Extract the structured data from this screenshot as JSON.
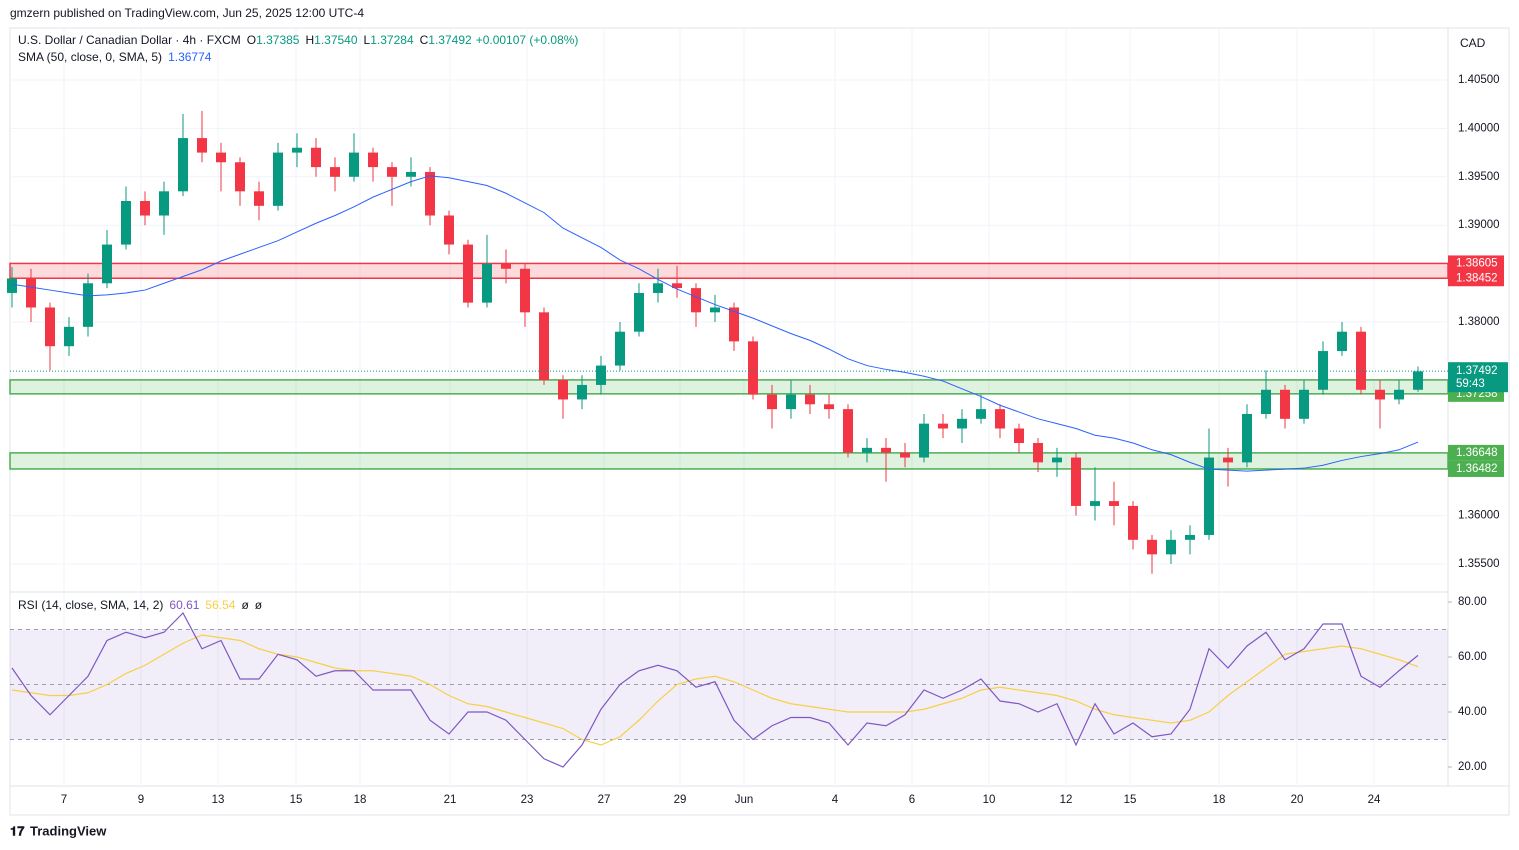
{
  "header": {
    "publisher": "gmzern published on TradingView.com, Jun 25, 2025 12:00 UTC-4",
    "symbol": "U.S. Dollar / Canadian Dollar · 4h · FXCM",
    "ohlc": [
      {
        "k": "O",
        "v": "1.37385"
      },
      {
        "k": "H",
        "v": "1.37540"
      },
      {
        "k": "L",
        "v": "1.37284"
      },
      {
        "k": "C",
        "v": "1.37492"
      }
    ],
    "change": "+0.00107 (+0.08%)",
    "sma_label": "SMA (50, close, 0, SMA, 5)",
    "sma_value": "1.36774",
    "rsi_label": "RSI (14, close, SMA, 14, 2)",
    "rsi_value": "60.61",
    "rsi_ma_value": "56.54",
    "rsi_extra": [
      "ø",
      "ø"
    ],
    "currency": "CAD",
    "footer": "TradingView"
  },
  "chart_data": {
    "type": "candlestick",
    "up_color": "#089981",
    "down_color": "#f23645",
    "ylim": [
      1.35211,
      1.41037
    ],
    "yticks": [
      {
        "value": 1.355,
        "label": "1.35500"
      },
      {
        "value": 1.36,
        "label": "1.36000"
      },
      {
        "value": 1.38,
        "label": "1.38000"
      },
      {
        "value": 1.39,
        "label": "1.39000"
      },
      {
        "value": 1.395,
        "label": "1.39500"
      },
      {
        "value": 1.4,
        "label": "1.40000"
      },
      {
        "value": 1.405,
        "label": "1.40500"
      }
    ],
    "xticks": [
      "7",
      "9",
      "13",
      "15",
      "18",
      "21",
      "23",
      "27",
      "29",
      "Jun",
      "4",
      "6",
      "10",
      "12",
      "15",
      "18",
      "20",
      "24"
    ],
    "open": [
      1.383,
      1.3845,
      1.3815,
      1.3775,
      1.3795,
      1.384,
      1.388,
      1.3925,
      1.391,
      1.3935,
      1.399,
      1.3975,
      1.3965,
      1.3935,
      1.392,
      1.3975,
      1.398,
      1.396,
      1.395,
      1.3975,
      1.396,
      1.395,
      1.3955,
      1.391,
      1.388,
      1.382,
      1.386,
      1.3855,
      1.381,
      1.374,
      1.372,
      1.3735,
      1.3755,
      1.379,
      1.383,
      1.384,
      1.3835,
      1.381,
      1.3815,
      1.378,
      1.3725,
      1.371,
      1.3725,
      1.3715,
      1.371,
      1.3665,
      1.367,
      1.3665,
      1.366,
      1.3695,
      1.369,
      1.37,
      1.371,
      1.369,
      1.3675,
      1.3655,
      1.366,
      1.361,
      1.3615,
      1.361,
      1.3575,
      1.356,
      1.3575,
      1.358,
      1.366,
      1.3655,
      1.3705,
      1.373,
      1.37,
      1.373,
      1.377,
      1.379,
      1.373,
      1.372,
      1.373
    ],
    "high": [
      1.3857,
      1.3855,
      1.382,
      1.3805,
      1.385,
      1.3895,
      1.394,
      1.3935,
      1.3945,
      1.4015,
      1.4018,
      1.3985,
      1.397,
      1.3945,
      1.3985,
      1.3995,
      1.399,
      1.397,
      1.3995,
      1.398,
      1.3965,
      1.397,
      1.396,
      1.3915,
      1.3885,
      1.389,
      1.3875,
      1.386,
      1.3815,
      1.3745,
      1.3745,
      1.3765,
      1.38,
      1.384,
      1.3855,
      1.3858,
      1.384,
      1.3828,
      1.382,
      1.3785,
      1.3735,
      1.374,
      1.3735,
      1.3725,
      1.3715,
      1.368,
      1.368,
      1.3675,
      1.3705,
      1.3705,
      1.371,
      1.3725,
      1.3715,
      1.3695,
      1.368,
      1.367,
      1.3665,
      1.365,
      1.3635,
      1.3615,
      1.358,
      1.3585,
      1.359,
      1.369,
      1.367,
      1.3715,
      1.375,
      1.3735,
      1.374,
      1.378,
      1.38,
      1.3795,
      1.374,
      1.374,
      1.3754
    ],
    "low": [
      1.3815,
      1.38,
      1.375,
      1.3765,
      1.3785,
      1.3835,
      1.3875,
      1.39,
      1.389,
      1.393,
      1.3965,
      1.3935,
      1.392,
      1.3905,
      1.3915,
      1.396,
      1.395,
      1.3935,
      1.3945,
      1.3945,
      1.392,
      1.394,
      1.39,
      1.387,
      1.3815,
      1.3815,
      1.384,
      1.3795,
      1.3735,
      1.37,
      1.371,
      1.3725,
      1.375,
      1.3785,
      1.382,
      1.3825,
      1.3795,
      1.38,
      1.377,
      1.372,
      1.369,
      1.37,
      1.3705,
      1.37,
      1.366,
      1.3655,
      1.3635,
      1.365,
      1.3655,
      1.368,
      1.3675,
      1.3695,
      1.368,
      1.3665,
      1.3645,
      1.364,
      1.36,
      1.3595,
      1.359,
      1.3565,
      1.354,
      1.355,
      1.356,
      1.3575,
      1.363,
      1.365,
      1.37,
      1.369,
      1.3695,
      1.3725,
      1.3765,
      1.3725,
      1.369,
      1.3715,
      1.3728
    ],
    "close": [
      1.3845,
      1.3815,
      1.3775,
      1.3795,
      1.384,
      1.388,
      1.3925,
      1.391,
      1.3935,
      1.399,
      1.3975,
      1.3965,
      1.3935,
      1.392,
      1.3975,
      1.398,
      1.396,
      1.395,
      1.3975,
      1.396,
      1.395,
      1.3955,
      1.391,
      1.388,
      1.382,
      1.386,
      1.3855,
      1.381,
      1.374,
      1.372,
      1.3735,
      1.3755,
      1.379,
      1.383,
      1.384,
      1.3835,
      1.381,
      1.3815,
      1.378,
      1.3725,
      1.371,
      1.3725,
      1.3715,
      1.371,
      1.3665,
      1.367,
      1.3665,
      1.366,
      1.3695,
      1.369,
      1.37,
      1.371,
      1.369,
      1.3675,
      1.3655,
      1.366,
      1.361,
      1.3615,
      1.361,
      1.3575,
      1.356,
      1.3575,
      1.358,
      1.366,
      1.3655,
      1.3705,
      1.373,
      1.37,
      1.373,
      1.377,
      1.379,
      1.373,
      1.372,
      1.373,
      1.3749
    ],
    "sma": {
      "color": "#2962ff",
      "values": [
        1.3839,
        1.3836,
        1.3833,
        1.383,
        1.3827,
        1.3828,
        1.383,
        1.3833,
        1.384,
        1.3847,
        1.3854,
        1.3863,
        1.387,
        1.3877,
        1.3884,
        1.3893,
        1.3902,
        1.391,
        1.3919,
        1.3929,
        1.3937,
        1.3945,
        1.3951,
        1.3949,
        1.3945,
        1.3941,
        1.3933,
        1.3923,
        1.3913,
        1.3897,
        1.3887,
        1.3877,
        1.3864,
        1.3855,
        1.3844,
        1.3834,
        1.3826,
        1.3818,
        1.3811,
        1.3804,
        1.3796,
        1.3788,
        1.3781,
        1.3772,
        1.3762,
        1.3755,
        1.3751,
        1.3748,
        1.3744,
        1.3739,
        1.3731,
        1.3723,
        1.3714,
        1.3707,
        1.37,
        1.3695,
        1.369,
        1.3683,
        1.368,
        1.3675,
        1.3668,
        1.3663,
        1.3655,
        1.3648,
        1.3647,
        1.3646,
        1.3647,
        1.3648,
        1.3649,
        1.3652,
        1.3657,
        1.3661,
        1.3664,
        1.3668,
        1.3676
      ]
    },
    "zones": [
      {
        "top": 1.38605,
        "bottom": 1.38452,
        "color": "#f23645"
      },
      {
        "top": 1.37402,
        "bottom": 1.37258,
        "color": "#4caf50"
      },
      {
        "top": 1.36648,
        "bottom": 1.36482,
        "color": "#4caf50"
      }
    ],
    "last_price": 1.37492,
    "countdown": "59:43",
    "rsi": {
      "ylim": [
        13.09,
        83.64
      ],
      "yticks": [
        {
          "value": 20,
          "label": "20.00"
        },
        {
          "value": 40,
          "label": "40.00"
        },
        {
          "value": 60,
          "label": "60.00"
        },
        {
          "value": 80,
          "label": "80.00"
        }
      ],
      "bands": [
        70,
        50,
        30
      ],
      "color": "#7e57c2",
      "ma_color": "#f7d046",
      "values": [
        56,
        46,
        39,
        46,
        53,
        66,
        69,
        67,
        69,
        76,
        63,
        66,
        52,
        52,
        61,
        59,
        53,
        55,
        55,
        48,
        48,
        48,
        37,
        32,
        40,
        40,
        37,
        30,
        23,
        20,
        28,
        41,
        50,
        55,
        57,
        55,
        49,
        51,
        37,
        30,
        35,
        38,
        38,
        36,
        28,
        36,
        35,
        39,
        48,
        45,
        48,
        52,
        44,
        43,
        40,
        43,
        28,
        43,
        32,
        36,
        31,
        32,
        41,
        63,
        56,
        64,
        69,
        59,
        63,
        72,
        72,
        53,
        49,
        55,
        60.6
      ],
      "ma": [
        48,
        47,
        46,
        46,
        47,
        50,
        54,
        57,
        61,
        65,
        68,
        67,
        66,
        63,
        61,
        60,
        58,
        56,
        55,
        55,
        54,
        53,
        50,
        46,
        43,
        42,
        40,
        38,
        36,
        34,
        30,
        28,
        31,
        37,
        44,
        50,
        52,
        53,
        51,
        48,
        45,
        43,
        42,
        41,
        40,
        40,
        40,
        40,
        41,
        43,
        45,
        48,
        49,
        48,
        47,
        46,
        44,
        41,
        39,
        38,
        37,
        36,
        37,
        40,
        46,
        51,
        56,
        61,
        62,
        63,
        64,
        63,
        61,
        59,
        56.5
      ]
    }
  }
}
